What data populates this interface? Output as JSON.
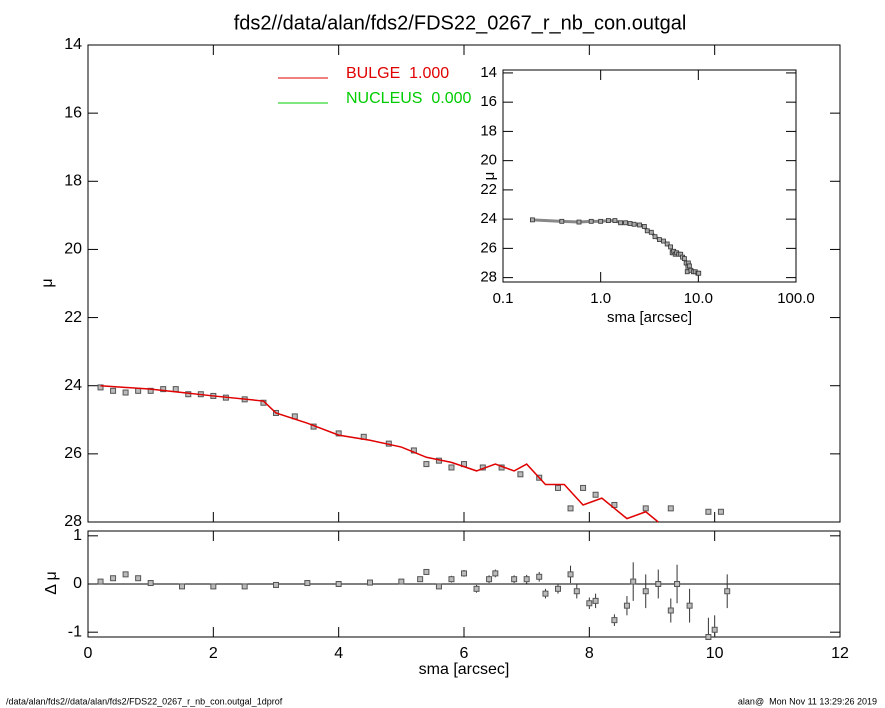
{
  "title": "fds2//data/alan/fds2/FDS22_0267_r_nb_con.outgal",
  "footer_left": "/data/alan/fds2//data/alan/fds2/FDS22_0267_r_nb_con.outgal_1dprof",
  "footer_right": "alan@  Mon Nov 11 13:29:26 2019",
  "chart_data": [
    {
      "type": "scatter",
      "ylabel": "μ",
      "xlim": [
        0,
        12
      ],
      "ylim": [
        28,
        14
      ],
      "yticks": [
        14,
        16,
        18,
        20,
        22,
        24,
        26,
        28
      ],
      "series": [
        {
          "marker": "square",
          "color": "#555555",
          "x": [
            0.2,
            0.4,
            0.6,
            0.8,
            1.0,
            1.2,
            1.4,
            1.6,
            1.8,
            2.0,
            2.2,
            2.5,
            2.8,
            3.0,
            3.3,
            3.6,
            4.0,
            4.4,
            4.8,
            5.2,
            5.4,
            5.6,
            5.8,
            6.0,
            6.3,
            6.6,
            6.9,
            7.2,
            7.5,
            7.7,
            7.9,
            8.1,
            8.4,
            8.9,
            9.3,
            9.9,
            10.1
          ],
          "values": [
            24.05,
            24.15,
            24.2,
            24.15,
            24.15,
            24.1,
            24.1,
            24.25,
            24.25,
            24.3,
            24.35,
            24.4,
            24.5,
            24.8,
            24.9,
            25.2,
            25.4,
            25.5,
            25.7,
            25.9,
            26.3,
            26.2,
            26.4,
            26.3,
            26.4,
            26.4,
            26.6,
            26.7,
            27.0,
            27.6,
            27.0,
            27.2,
            27.5,
            27.6,
            27.6,
            27.7,
            27.7
          ]
        },
        {
          "name": "BULGE  1.000",
          "color": "#e00000",
          "line": true,
          "x": [
            0.2,
            1.0,
            1.5,
            2.0,
            2.8,
            3.0,
            3.5,
            4.0,
            4.5,
            5.0,
            5.4,
            5.8,
            6.2,
            6.5,
            6.8,
            7.0,
            7.3,
            7.6,
            7.9,
            8.2,
            8.6,
            8.9,
            9.1
          ],
          "values": [
            24.0,
            24.1,
            24.2,
            24.3,
            24.45,
            24.8,
            25.1,
            25.45,
            25.6,
            25.8,
            26.1,
            26.25,
            26.5,
            26.3,
            26.5,
            26.3,
            26.9,
            26.9,
            27.5,
            27.3,
            27.9,
            27.7,
            28.0
          ]
        },
        {
          "name": "NUCLEUS  0.000",
          "color": "#00cc00"
        }
      ]
    },
    {
      "type": "residual",
      "xlabel": "sma [arcsec]",
      "ylabel": "Δ μ",
      "xlim": [
        0,
        12
      ],
      "xticks": [
        0,
        2,
        4,
        6,
        8,
        10,
        12
      ],
      "ylim": [
        -1.1,
        1.1
      ],
      "yticks": [
        1,
        0,
        -1
      ],
      "hline": 0,
      "color": "#555555",
      "x": [
        0.2,
        0.4,
        0.6,
        0.8,
        1.0,
        1.5,
        2.0,
        2.5,
        3.0,
        3.5,
        4.0,
        4.5,
        5.0,
        5.3,
        5.4,
        5.6,
        5.8,
        6.0,
        6.2,
        6.4,
        6.5,
        6.8,
        7.0,
        7.2,
        7.3,
        7.5,
        7.7,
        7.8,
        8.0,
        8.1,
        8.4,
        8.6,
        8.7,
        8.9,
        9.1,
        9.3,
        9.4,
        9.6,
        9.9,
        10.0,
        10.2
      ],
      "values": [
        0.05,
        0.12,
        0.2,
        0.12,
        0.02,
        -0.05,
        -0.05,
        -0.05,
        -0.02,
        0.02,
        0.0,
        0.03,
        0.05,
        0.1,
        0.25,
        -0.05,
        0.1,
        0.22,
        -0.1,
        0.1,
        0.22,
        0.1,
        0.1,
        0.15,
        -0.2,
        -0.1,
        0.2,
        -0.15,
        -0.4,
        -0.35,
        -0.75,
        -0.45,
        0.05,
        -0.15,
        0.0,
        -0.55,
        0.0,
        -0.45,
        -1.1,
        -0.95,
        -0.15
      ],
      "errors": [
        0.01,
        0.01,
        0.01,
        0.01,
        0.01,
        0.01,
        0.01,
        0.01,
        0.02,
        0.02,
        0.02,
        0.03,
        0.04,
        0.05,
        0.06,
        0.05,
        0.07,
        0.07,
        0.08,
        0.08,
        0.08,
        0.08,
        0.09,
        0.1,
        0.1,
        0.1,
        0.18,
        0.15,
        0.12,
        0.15,
        0.12,
        0.2,
        0.4,
        0.35,
        0.3,
        0.25,
        0.4,
        0.35,
        0.4,
        0.3,
        0.35
      ]
    },
    {
      "type": "inset",
      "source": "chart_data.0.series.0",
      "xlabel": "sma [arcsec]",
      "ylabel": "μ",
      "xscale": "log",
      "xlim": [
        0.1,
        100
      ],
      "xticks": [
        0.1,
        {
          "value": 1,
          "label": "1.0"
        },
        {
          "value": 10,
          "label": "10.0"
        },
        {
          "value": 100,
          "label": "100.0"
        }
      ],
      "ylim": [
        28.3,
        13.8
      ],
      "yticks": [
        14,
        16,
        18,
        20,
        22,
        24,
        26,
        28
      ]
    }
  ]
}
